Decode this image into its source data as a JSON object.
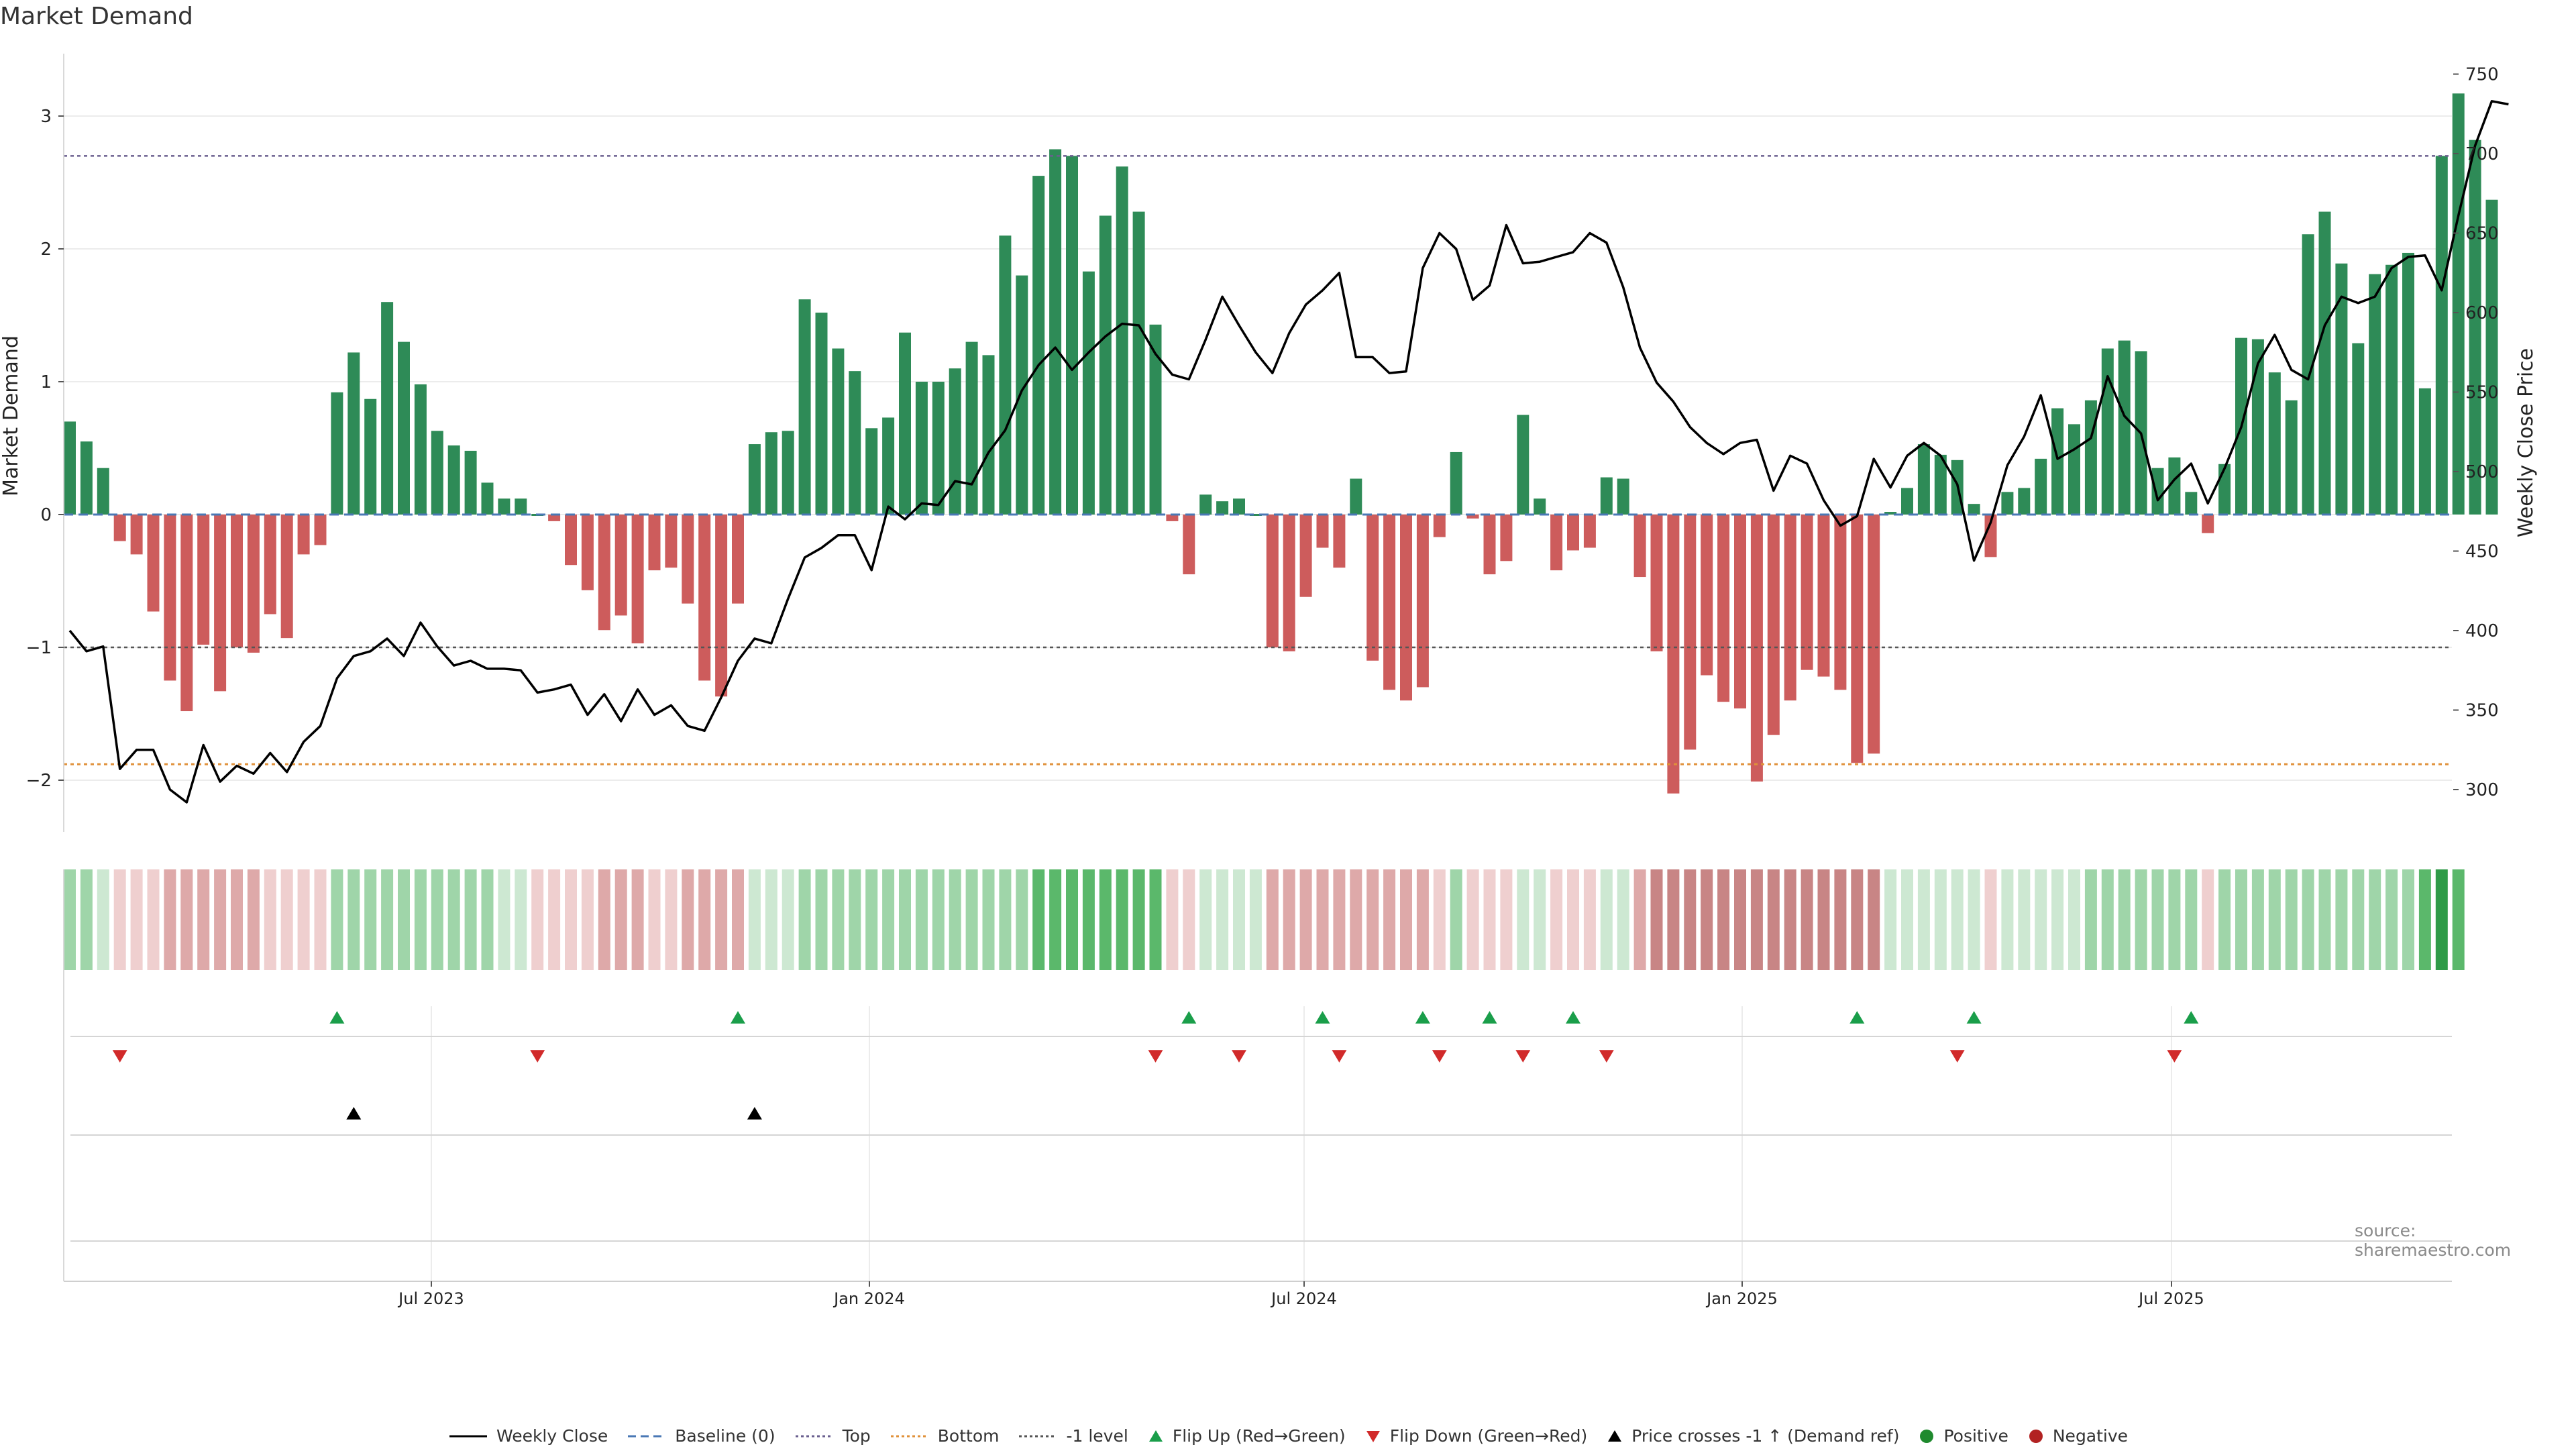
{
  "title": "Market Demand",
  "source": "source: sharemaestro.com",
  "chart_data": {
    "type": "bar",
    "title": "Market Demand",
    "ylabel": "Market Demand",
    "y2label": "Weekly Close Price",
    "ylim": [
      -2.4,
      3.3
    ],
    "y2lim": [
      280,
      755
    ],
    "yticks": [
      -2,
      -1,
      0,
      1,
      2,
      3
    ],
    "ytick_labels": [
      "−2",
      "−1",
      "0",
      "1",
      "2",
      "3"
    ],
    "y2ticks": [
      300,
      350,
      400,
      450,
      500,
      550,
      600,
      650,
      700,
      750
    ],
    "xticks": [
      "Jul 2023",
      "Jan 2024",
      "Jul 2024",
      "Jan 2025",
      "Jul 2025"
    ],
    "reference_lines": {
      "baseline": 0,
      "top": 2.7,
      "minus1": -1,
      "bottom": -1.88
    },
    "demand": [
      0.7,
      0.55,
      0.35,
      -0.2,
      -0.3,
      -0.73,
      -1.25,
      -1.48,
      -0.98,
      -1.33,
      -1.0,
      -1.04,
      -0.75,
      -0.93,
      -0.3,
      -0.23,
      0.92,
      1.22,
      0.87,
      1.6,
      1.3,
      0.98,
      0.63,
      0.52,
      0.48,
      0.24,
      0.12,
      0.12,
      0.0,
      -0.05,
      -0.38,
      -0.57,
      -0.87,
      -0.76,
      -0.97,
      -0.42,
      -0.4,
      -0.67,
      -1.25,
      -1.37,
      -0.67,
      0.53,
      0.62,
      0.63,
      1.62,
      1.52,
      1.25,
      1.08,
      0.65,
      0.73,
      1.37,
      1.0,
      1.0,
      1.1,
      1.3,
      1.2,
      2.1,
      1.8,
      2.55,
      2.75,
      2.7,
      1.83,
      2.25,
      2.62,
      2.28,
      1.43,
      -0.05,
      -0.45,
      0.15,
      0.1,
      0.12,
      0.0,
      -1.0,
      -1.03,
      -0.62,
      -0.25,
      -0.4,
      0.27,
      -1.1,
      -1.32,
      -1.4,
      -1.3,
      -0.17,
      0.47,
      -0.03,
      -0.45,
      -0.35,
      0.75,
      0.12,
      -0.42,
      -0.27,
      -0.25,
      0.28,
      0.27,
      -0.47,
      -1.03,
      -2.1,
      -1.77,
      -1.21,
      -1.41,
      -1.46,
      -2.01,
      -1.66,
      -1.4,
      -1.17,
      -1.22,
      -1.32,
      -1.87,
      -1.8,
      0.02,
      0.2,
      0.53,
      0.45,
      0.41,
      0.08,
      -0.32,
      0.17,
      0.2,
      0.42,
      0.8,
      0.68,
      0.86,
      1.25,
      1.31,
      1.23,
      0.35,
      0.43,
      0.17,
      -0.14,
      0.38,
      1.33,
      1.32,
      1.07,
      0.86,
      2.11,
      2.28,
      1.89,
      1.29,
      1.81,
      1.88,
      1.97,
      0.95,
      2.7,
      3.17,
      2.82,
      2.37
    ],
    "weekly_close": [
      400,
      387,
      390,
      313,
      325,
      325,
      300,
      292,
      328,
      305,
      315,
      310,
      323,
      311,
      330,
      340,
      370,
      384,
      387,
      395,
      384,
      405,
      390,
      378,
      381,
      376,
      376,
      375,
      361,
      363,
      366,
      347,
      360,
      343,
      363,
      347,
      353,
      340,
      337,
      358,
      381,
      395,
      392,
      420,
      446,
      452,
      460,
      460,
      438,
      478,
      470,
      480,
      479,
      494,
      492,
      512,
      526,
      551,
      567,
      578,
      564,
      575,
      585,
      593,
      592,
      574,
      561,
      558,
      583,
      610,
      592,
      575,
      562,
      587,
      605,
      614,
      625,
      572,
      572,
      562,
      563,
      628,
      650,
      640,
      608,
      617,
      655,
      631,
      632,
      635,
      638,
      650,
      644,
      616,
      578,
      556,
      544,
      528,
      518,
      511,
      518,
      520,
      488,
      510,
      505,
      482,
      466,
      472,
      508,
      490,
      510,
      518,
      510,
      492,
      444,
      468,
      504,
      522,
      548,
      508,
      514,
      521,
      560,
      535,
      524,
      482,
      495,
      505,
      480,
      502,
      528,
      568,
      586,
      564,
      558,
      592,
      610,
      606,
      610,
      628,
      635,
      636,
      614,
      661,
      705,
      733,
      731
    ],
    "shade_levels": [
      2,
      2,
      1,
      -1,
      -1,
      -1,
      -2,
      -2,
      -2,
      -2,
      -2,
      -2,
      -1,
      -1,
      -1,
      -1,
      2,
      2,
      2,
      2,
      2,
      2,
      2,
      2,
      2,
      2,
      1,
      1,
      -1,
      -1,
      -1,
      -1,
      -2,
      -2,
      -2,
      -1,
      -1,
      -2,
      -2,
      -2,
      -2,
      1,
      1,
      1,
      2,
      2,
      2,
      2,
      2,
      2,
      2,
      2,
      2,
      2,
      2,
      2,
      2,
      2,
      3,
      3,
      3,
      3,
      3,
      3,
      3,
      3,
      -1,
      -1,
      1,
      1,
      1,
      1,
      -2,
      -2,
      -2,
      -2,
      -2,
      -2,
      -2,
      -2,
      -2,
      -2,
      -1,
      2,
      -1,
      -1,
      -1,
      1,
      1,
      -1,
      -1,
      -1,
      1,
      1,
      -2,
      -3,
      -3,
      -3,
      -3,
      -3,
      -3,
      -3,
      -3,
      -3,
      -3,
      -3,
      -3,
      -3,
      -3,
      1,
      1,
      1,
      1,
      1,
      1,
      -1,
      1,
      1,
      1,
      1,
      1,
      2,
      2,
      2,
      2,
      2,
      2,
      2,
      -1,
      2,
      2,
      2,
      2,
      2,
      2,
      2,
      2,
      2,
      2,
      2,
      2,
      3,
      4,
      3
    ],
    "flip_up_index": [
      16,
      40,
      67,
      75,
      81,
      85,
      90,
      107,
      114,
      127
    ],
    "flip_down_index": [
      3,
      28,
      65,
      70,
      76,
      82,
      87,
      92,
      113,
      126
    ],
    "price_cross_index": [
      17,
      41
    ]
  },
  "legend": [
    {
      "label": "Weekly Close",
      "icon": "line-solid",
      "color": "#000000"
    },
    {
      "label": "Baseline (0)",
      "icon": "line-dashed",
      "color": "#4a78b5"
    },
    {
      "label": "Top",
      "icon": "line-dotted",
      "color": "#6a5f8f"
    },
    {
      "label": "Bottom",
      "icon": "line-dotted",
      "color": "#e0913a"
    },
    {
      "label": "-1 level",
      "icon": "line-dotted",
      "color": "#555555"
    },
    {
      "label": "Flip Up (Red→Green)",
      "icon": "triangle-up",
      "color": "#1a9e4a"
    },
    {
      "label": "Flip Down (Green→Red)",
      "icon": "triangle-down",
      "color": "#d12a2a"
    },
    {
      "label": "Price crosses -1 ↑ (Demand ref)",
      "icon": "triangle-up",
      "color": "#000000"
    },
    {
      "label": "Positive",
      "icon": "circle",
      "color": "#1f8a2e"
    },
    {
      "label": "Negative",
      "icon": "circle",
      "color": "#b22222"
    }
  ],
  "colors": {
    "positive_bar": "#2e8b57",
    "negative_bar": "#cd5c5c",
    "grid": "#ececec"
  }
}
